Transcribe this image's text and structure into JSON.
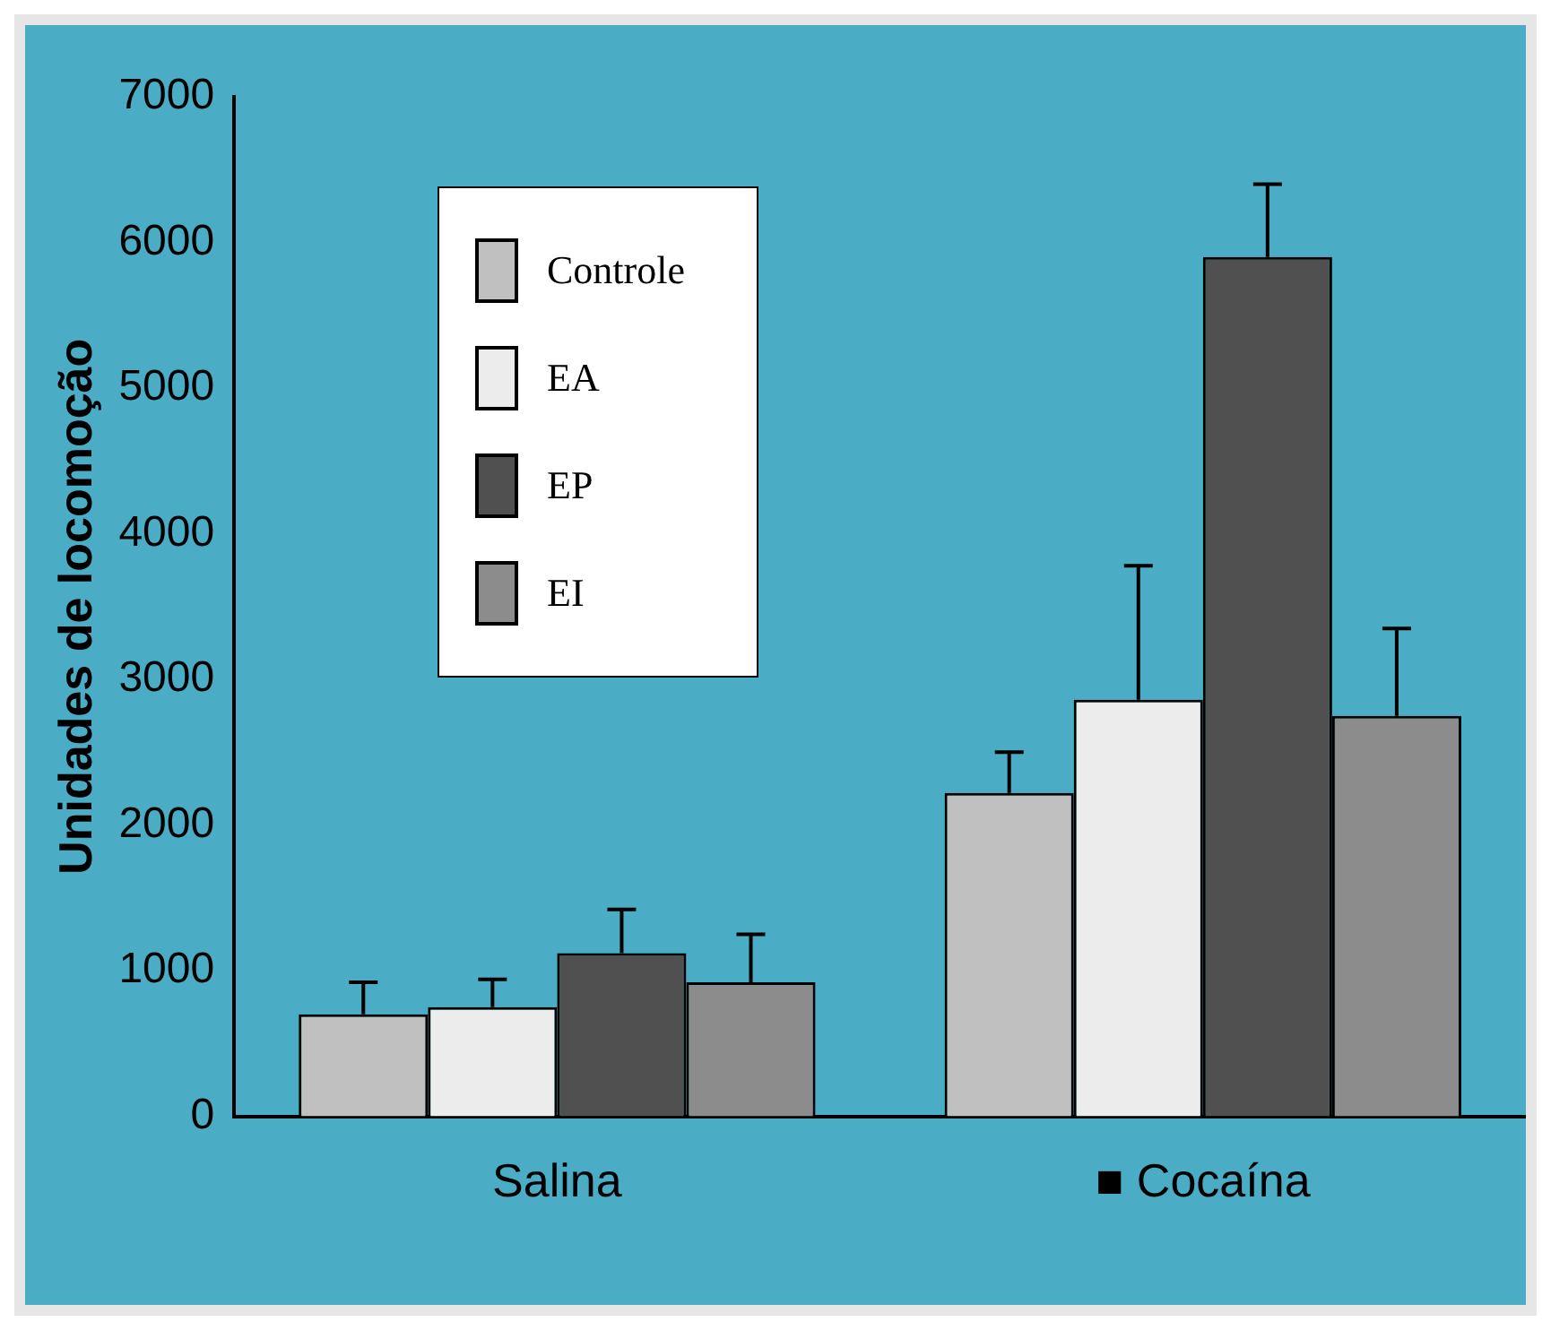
{
  "chart_data": {
    "type": "bar",
    "ylabel": "Unidades de locomoção",
    "categories": [
      "Salina",
      "■ Cocaína"
    ],
    "series": [
      {
        "name": "Controle",
        "color": "#c0c0c0",
        "values": [
          700,
          2220
        ],
        "errors": [
          220,
          280
        ]
      },
      {
        "name": "EA",
        "color": "#ececec",
        "values": [
          750,
          2860
        ],
        "errors": [
          190,
          920
        ]
      },
      {
        "name": "EP",
        "color": "#505050",
        "values": [
          1120,
          5900
        ],
        "errors": [
          300,
          500
        ]
      },
      {
        "name": "EI",
        "color": "#8c8c8c",
        "values": [
          920,
          2750
        ],
        "errors": [
          330,
          600
        ]
      }
    ],
    "ylim": [
      0,
      7000
    ],
    "yticks": [
      0,
      1000,
      2000,
      3000,
      4000,
      5000,
      6000,
      7000
    ],
    "grid": false,
    "legend": "top left"
  }
}
